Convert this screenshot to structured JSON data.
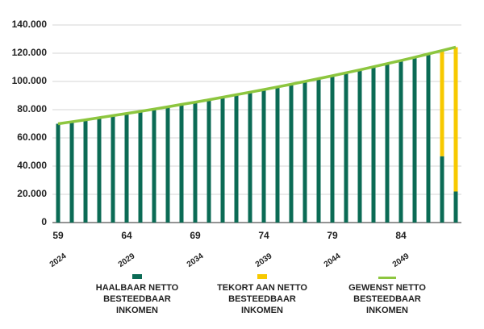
{
  "chart_data": {
    "type": "stacked_bar_line",
    "categories": [
      59,
      null,
      null,
      null,
      null,
      64,
      null,
      null,
      null,
      null,
      69,
      null,
      null,
      null,
      null,
      74,
      null,
      null,
      null,
      null,
      79,
      null,
      null,
      null,
      null,
      84,
      null,
      null,
      null,
      null
    ],
    "years": [
      "2024",
      null,
      null,
      null,
      null,
      "2029",
      null,
      null,
      null,
      null,
      "2034",
      null,
      null,
      null,
      null,
      "2039",
      null,
      null,
      null,
      null,
      "2044",
      null,
      null,
      null,
      null,
      "2049",
      null,
      null,
      null,
      null
    ],
    "series": [
      {
        "name": "HAALBAAR NETTO BESTEEDBAAR INKOMEN",
        "color": "#0b6b55",
        "kind": "bar",
        "values": [
          70000,
          71400,
          72800,
          74300,
          75800,
          77300,
          78800,
          80400,
          82000,
          83700,
          85300,
          87000,
          88800,
          90600,
          92400,
          94200,
          96100,
          98000,
          100000,
          102000,
          104000,
          106100,
          108200,
          110400,
          112600,
          114800,
          117100,
          119500,
          47000,
          22000
        ]
      },
      {
        "name": "TEKORT AAN NETTO BESTEEDBAAR INKOMEN",
        "color": "#f7c900",
        "kind": "bar",
        "values": [
          null,
          null,
          null,
          null,
          null,
          null,
          null,
          null,
          null,
          null,
          null,
          null,
          null,
          null,
          null,
          null,
          null,
          null,
          null,
          null,
          null,
          null,
          null,
          null,
          null,
          null,
          null,
          null,
          74900,
          102300
        ]
      },
      {
        "name": "GEWENST NETTO BESTEEDBAAR INKOMEN",
        "color": "#8dc63f",
        "kind": "line",
        "values": [
          70000,
          71400,
          72800,
          74300,
          75800,
          77300,
          78800,
          80400,
          82000,
          83700,
          85300,
          87000,
          88800,
          90600,
          92400,
          94200,
          96100,
          98000,
          100000,
          102000,
          104000,
          106100,
          108200,
          110400,
          112600,
          114800,
          117100,
          119500,
          121900,
          124300
        ]
      }
    ],
    "ylim": [
      0,
      140000
    ],
    "yticks": [
      0,
      {
        "value": 20000,
        "label": "20.000"
      },
      {
        "value": 40000,
        "label": "40.000"
      },
      {
        "value": 60000,
        "label": "60.000"
      },
      {
        "value": 80000,
        "label": "80.000"
      },
      {
        "value": 100000,
        "label": "100.000"
      },
      {
        "value": 120000,
        "label": "120.000"
      },
      {
        "value": 140000,
        "label": "140.000"
      }
    ],
    "grid": true
  }
}
